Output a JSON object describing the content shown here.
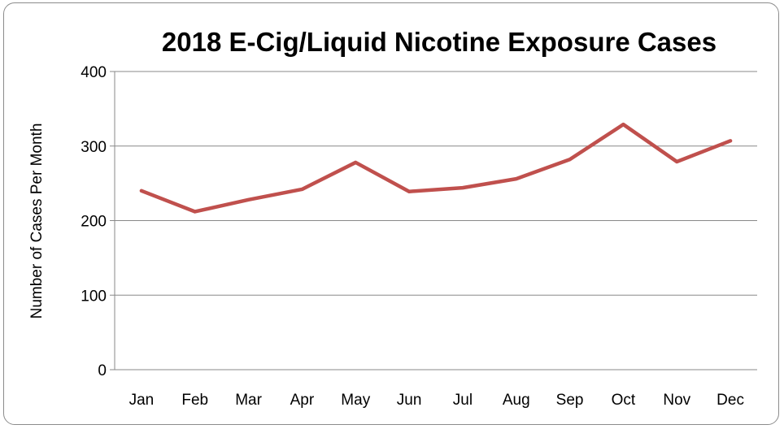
{
  "chart_data": {
    "type": "line",
    "title": "2018 E-Cig/Liquid Nicotine Exposure Cases",
    "xlabel": "",
    "ylabel": "Number of Cases Per Month",
    "categories": [
      "Jan",
      "Feb",
      "Mar",
      "Apr",
      "May",
      "Jun",
      "Jul",
      "Aug",
      "Sep",
      "Oct",
      "Nov",
      "Dec"
    ],
    "series": [
      {
        "values": [
          240,
          212,
          228,
          242,
          278,
          239,
          244,
          256,
          282,
          329,
          279,
          307
        ],
        "color": "#c0504d"
      }
    ],
    "ylim": [
      0,
      400
    ],
    "yticks": [
      "0",
      "100",
      "200",
      "300",
      "400"
    ],
    "grid": true,
    "legend": "none"
  }
}
